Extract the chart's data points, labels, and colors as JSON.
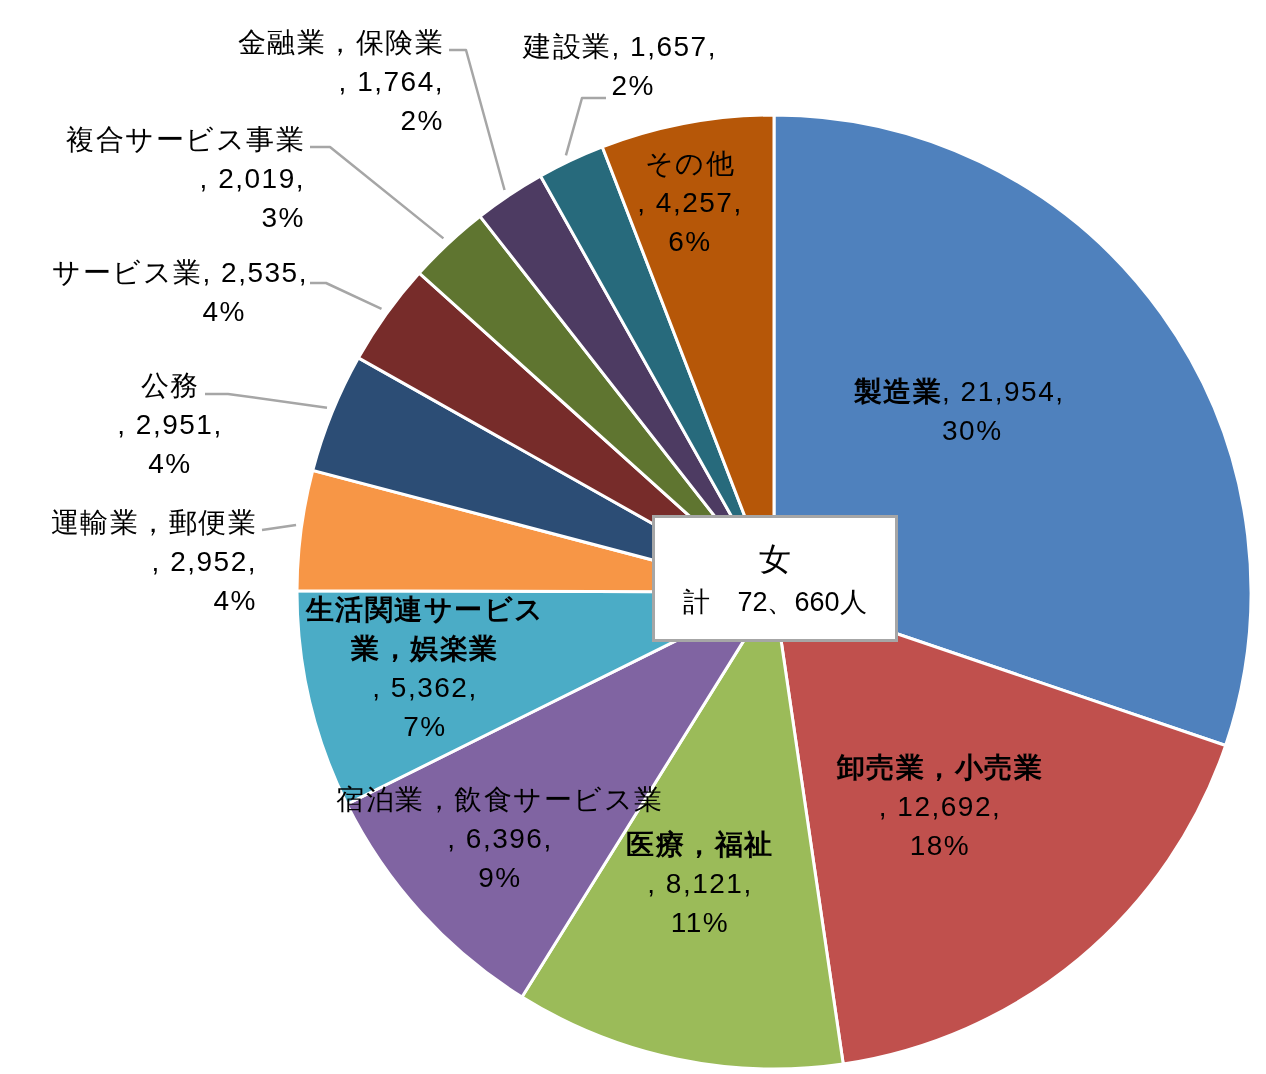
{
  "chart_data": {
    "type": "pie",
    "title": "女",
    "subtitle": "計　72、660人",
    "categories": [
      "製造業",
      "卸売業，小売業",
      "医療，福祉",
      "宿泊業，飲食サービス業",
      "生活関連サービス業，娯楽業",
      "運輸業，郵便業",
      "公務",
      "サービス業",
      "複合サービス事業",
      "金融業，保険業",
      "建設業",
      "その他"
    ],
    "values": [
      21954,
      12692,
      8121,
      6396,
      5362,
      2952,
      2951,
      2535,
      2019,
      1764,
      1657,
      4257
    ],
    "colors": [
      "#4f81bd",
      "#c0504d",
      "#9bbb59",
      "#8064a2",
      "#4bacc6",
      "#f79646",
      "#2c4d75",
      "#772c2a",
      "#5f7530",
      "#4d3b62",
      "#276a7c",
      "#b65708"
    ],
    "value_labels": [
      ", 21,954, 30%",
      ", 12,692, 18%",
      ", 8,121, 11%",
      ", 6,396, 9%",
      ", 5,362, 7%",
      ", 2,952, 4%",
      ", 2,951, 4%",
      ", 2,535, 4%",
      ", 2,019, 3%",
      ", 1,764, 2%",
      ", 1,657, 2%",
      ", 4,257, 6%"
    ]
  }
}
